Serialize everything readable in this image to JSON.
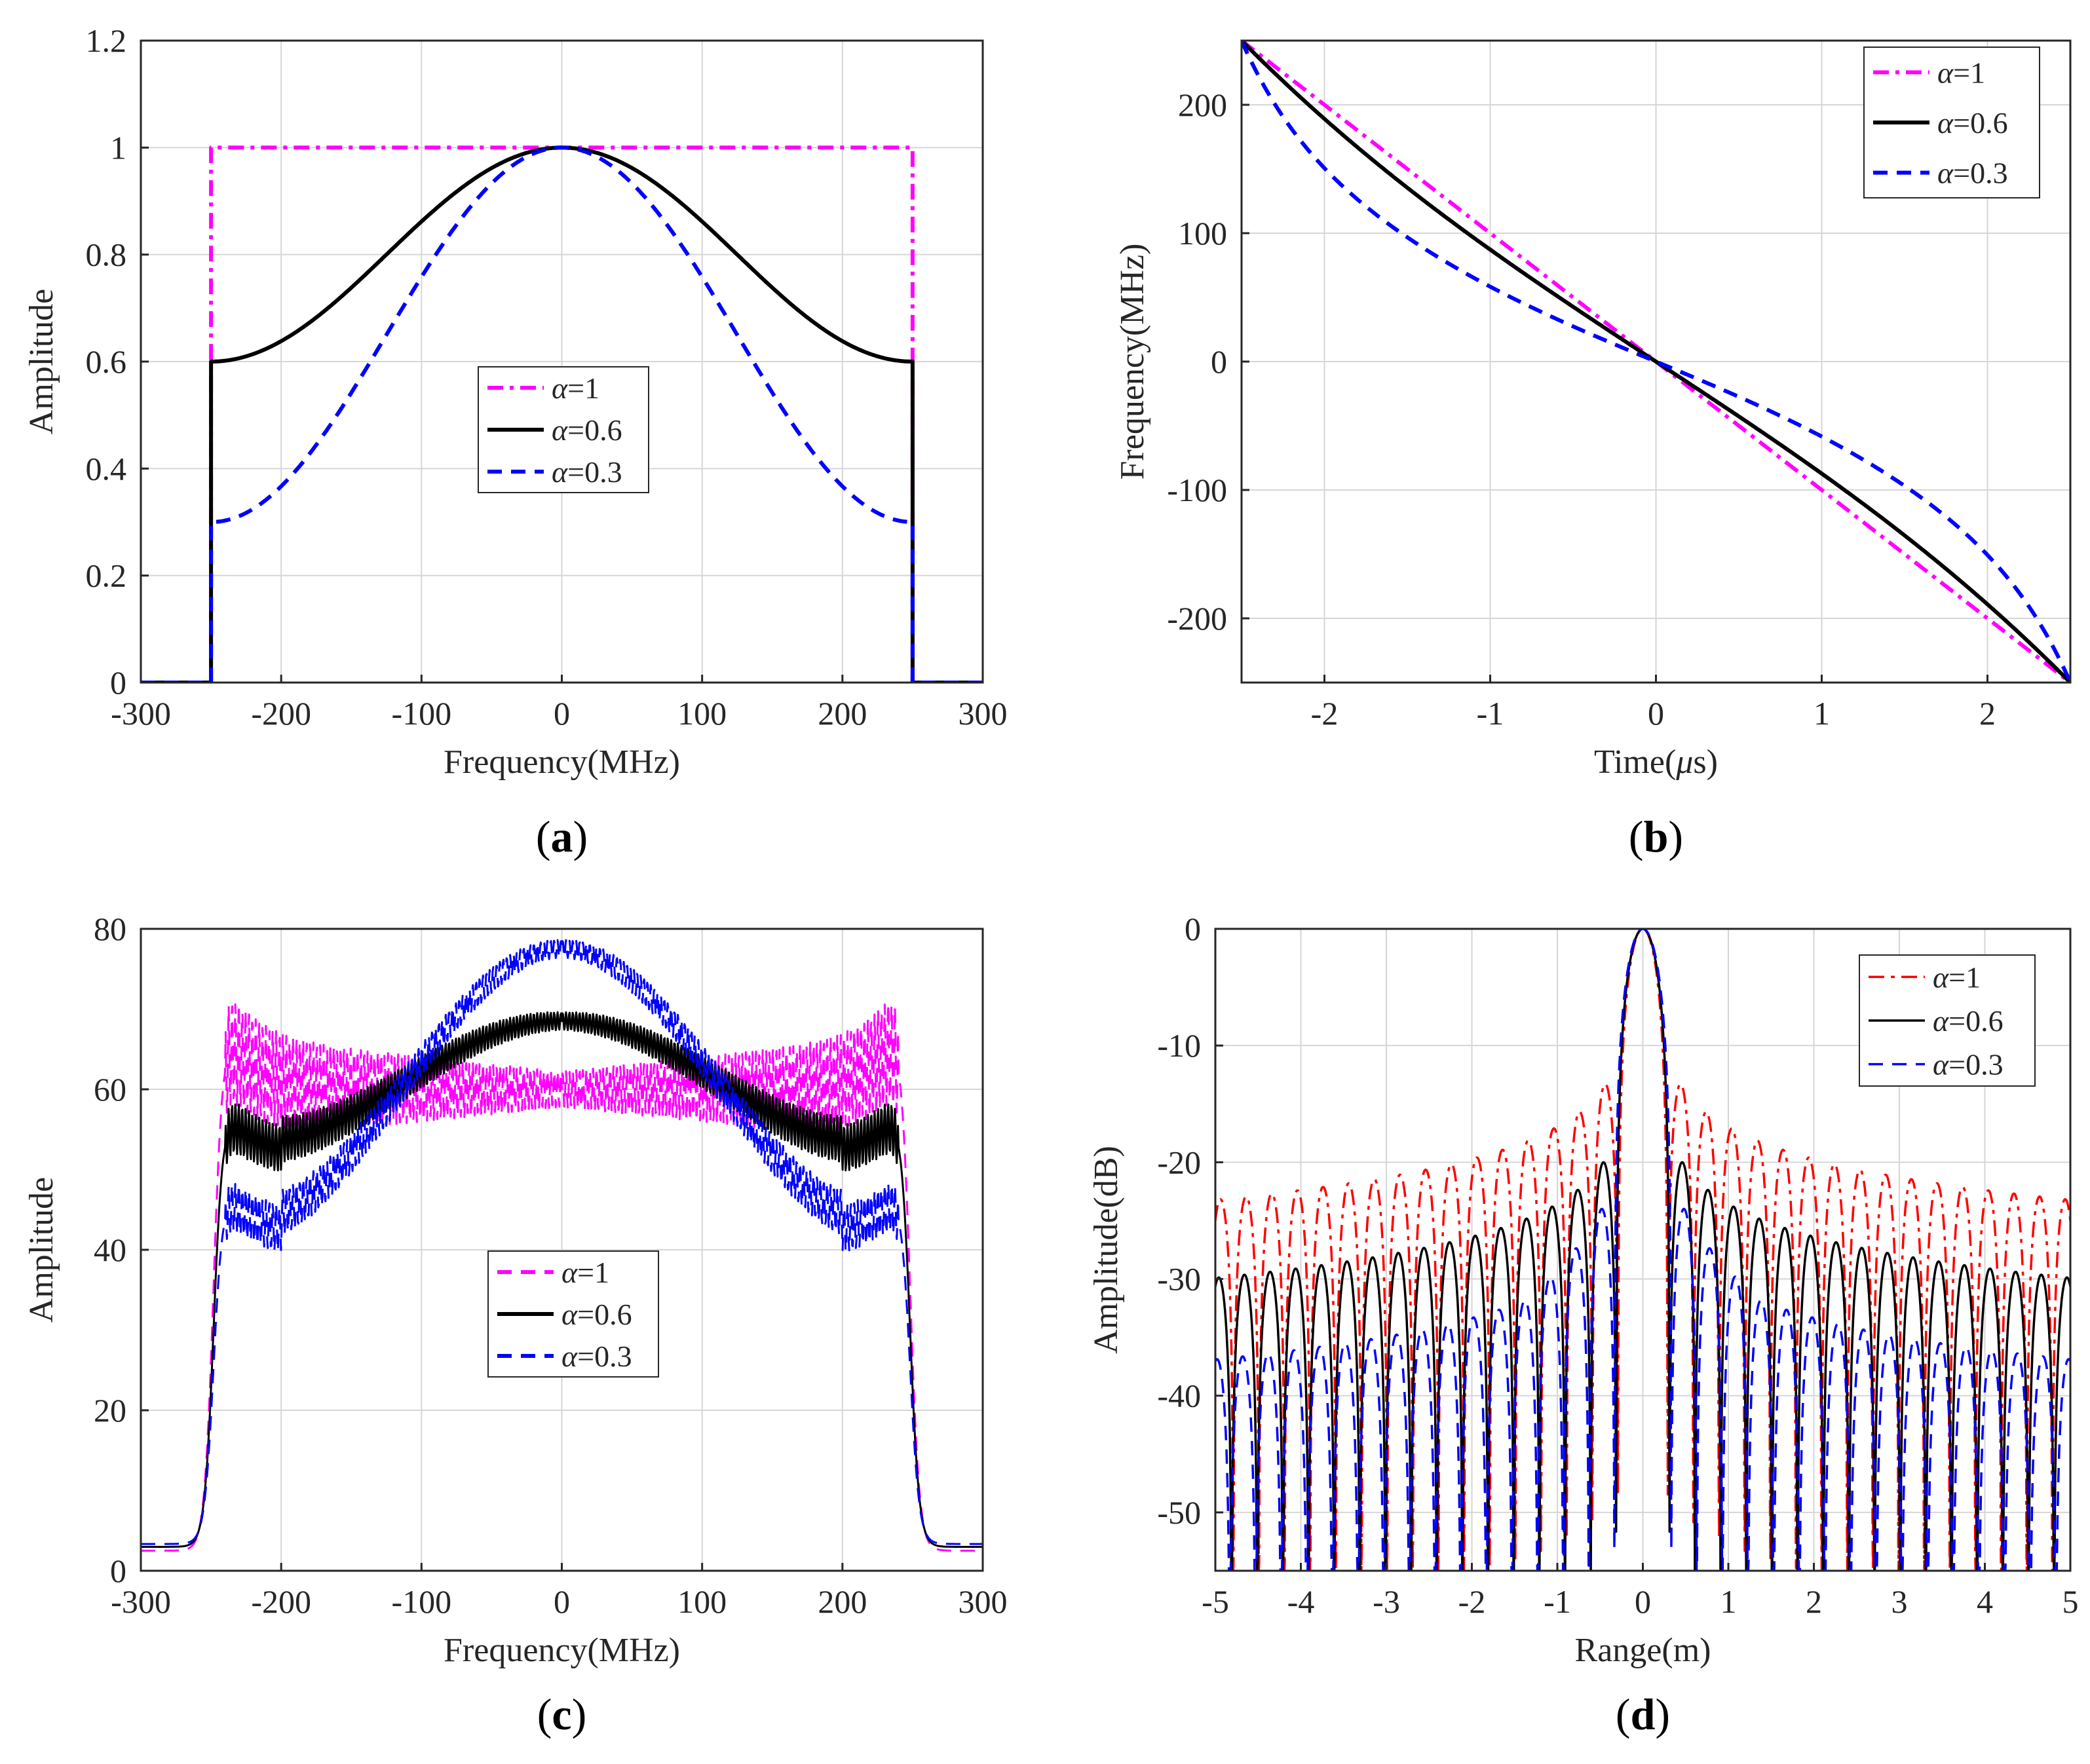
{
  "panels": [
    {
      "label": "a",
      "title_open": "(",
      "title_close": ")"
    },
    {
      "label": "b",
      "title_open": "(",
      "title_close": ")"
    },
    {
      "label": "c",
      "title_open": "(",
      "title_close": ")"
    },
    {
      "label": "d",
      "title_open": "(",
      "title_close": ")"
    }
  ],
  "chart_data": [
    {
      "type": "line",
      "panel": "a",
      "xlabel": "Frequency(MHz)",
      "ylabel": "Amplitude",
      "xlim": [
        -300,
        300
      ],
      "ylim": [
        0,
        1.2
      ],
      "xticks": [
        -300,
        -200,
        -100,
        0,
        100,
        200,
        300
      ],
      "xtick_labels": [
        "-300",
        "-200",
        "-100",
        "0",
        "100",
        "200",
        "300"
      ],
      "yticks": [
        0,
        0.2,
        0.4,
        0.6,
        0.8,
        1,
        1.2
      ],
      "ytick_labels": [
        "0",
        "0.2",
        "0.4",
        "0.6",
        "0.8",
        "1",
        "1.2"
      ],
      "grid": true,
      "legend_position": "center",
      "series": [
        {
          "name": "α=1",
          "symbol": "α",
          "suffix": "=1",
          "alpha": 1.0,
          "color": "#ff00ff",
          "dash": "dashdot",
          "model": "window",
          "band": 250
        },
        {
          "name": "α=0.6",
          "symbol": "α",
          "suffix": "=0.6",
          "alpha": 0.6,
          "color": "#000000",
          "dash": "solid",
          "model": "window",
          "band": 250
        },
        {
          "name": "α=0.3",
          "symbol": "α",
          "suffix": "=0.3",
          "alpha": 0.3,
          "color": "#0000ff",
          "dash": "dashed",
          "model": "window",
          "band": 250
        }
      ]
    },
    {
      "type": "line",
      "panel": "b",
      "xlabel": "Time(",
      "xlabel_symbol": "μ",
      "xlabel_suffix": "s)",
      "ylabel": "Frequency(MHz)",
      "xlim": [
        -2.5,
        2.5
      ],
      "ylim": [
        -250,
        250
      ],
      "xticks": [
        -2,
        -1,
        0,
        1,
        2
      ],
      "xtick_labels": [
        "-2",
        "-1",
        "0",
        "1",
        "2"
      ],
      "yticks": [
        -200,
        -100,
        0,
        100,
        200
      ],
      "ytick_labels": [
        "-200",
        "-100",
        "0",
        "100",
        "200"
      ],
      "grid": true,
      "legend_position": "top-right",
      "series": [
        {
          "name": "α=1",
          "symbol": "α",
          "suffix": "=1",
          "alpha": 1.0,
          "color": "#ff00ff",
          "dash": "dashdot",
          "model": "freq"
        },
        {
          "name": "α=0.6",
          "symbol": "α",
          "suffix": "=0.6",
          "alpha": 0.6,
          "color": "#000000",
          "dash": "solid",
          "model": "freq"
        },
        {
          "name": "α=0.3",
          "symbol": "α",
          "suffix": "=0.3",
          "alpha": 0.3,
          "color": "#0000ff",
          "dash": "dashed",
          "model": "freq"
        }
      ]
    },
    {
      "type": "line",
      "panel": "c",
      "xlabel": "Frequency(MHz)",
      "ylabel": "Amplitude",
      "xlim": [
        -300,
        300
      ],
      "ylim": [
        0,
        80
      ],
      "xticks": [
        -300,
        -200,
        -100,
        0,
        100,
        200,
        300
      ],
      "xtick_labels": [
        "-300",
        "-200",
        "-100",
        "0",
        "100",
        "200",
        "300"
      ],
      "yticks": [
        0,
        20,
        40,
        60,
        80
      ],
      "ytick_labels": [
        "0",
        "20",
        "40",
        "60",
        "80"
      ],
      "grid": true,
      "legend_position": "center",
      "series": [
        {
          "name": "α=1",
          "symbol": "α",
          "suffix": "=1",
          "alpha": 1.0,
          "color": "#ff00ff",
          "dash": "dashed",
          "model": "spectrum",
          "peak": 60
        },
        {
          "name": "α=0.6",
          "symbol": "α",
          "suffix": "=0.6",
          "alpha": 0.6,
          "color": "#000000",
          "dash": "solid",
          "model": "spectrum",
          "peak": 68.5
        },
        {
          "name": "α=0.3",
          "symbol": "α",
          "suffix": "=0.3",
          "alpha": 0.3,
          "color": "#0000ff",
          "dash": "dashed",
          "model": "spectrum",
          "peak": 77.5
        }
      ]
    },
    {
      "type": "line",
      "panel": "d",
      "xlabel": "Range(m)",
      "ylabel": "Amplitude(dB)",
      "xlim": [
        -5,
        5
      ],
      "ylim": [
        -55,
        0
      ],
      "xticks": [
        -5,
        -4,
        -3,
        -2,
        -1,
        0,
        1,
        2,
        3,
        4,
        5
      ],
      "xtick_labels": [
        "-5",
        "-4",
        "-3",
        "-2",
        "-1",
        "0",
        "1",
        "2",
        "3",
        "4",
        "5"
      ],
      "yticks": [
        -50,
        -40,
        -30,
        -20,
        -10,
        0
      ],
      "ytick_labels": [
        "-50",
        "-40",
        "-30",
        "-20",
        "-10",
        "0"
      ],
      "grid": true,
      "legend_position": "top-right",
      "series": [
        {
          "name": "α=1",
          "symbol": "α",
          "suffix": "=1",
          "alpha": 1.0,
          "color": "#ff0000",
          "dash": "dashdot",
          "model": "compress",
          "first_sidelobe": -13.3,
          "mainlobe": 0.29,
          "spacing": 0.3
        },
        {
          "name": "α=0.6",
          "symbol": "α",
          "suffix": "=0.6",
          "alpha": 0.6,
          "color": "#000000",
          "dash": "solid",
          "model": "compress",
          "first_sidelobe": -20,
          "mainlobe": 0.31,
          "spacing": 0.3
        },
        {
          "name": "α=0.3",
          "symbol": "α",
          "suffix": "=0.3",
          "alpha": 0.3,
          "color": "#0000ff",
          "dash": "dashed",
          "model": "compress",
          "first_sidelobe": -24,
          "mainlobe": 0.33,
          "spacing": 0.3
        }
      ]
    }
  ]
}
